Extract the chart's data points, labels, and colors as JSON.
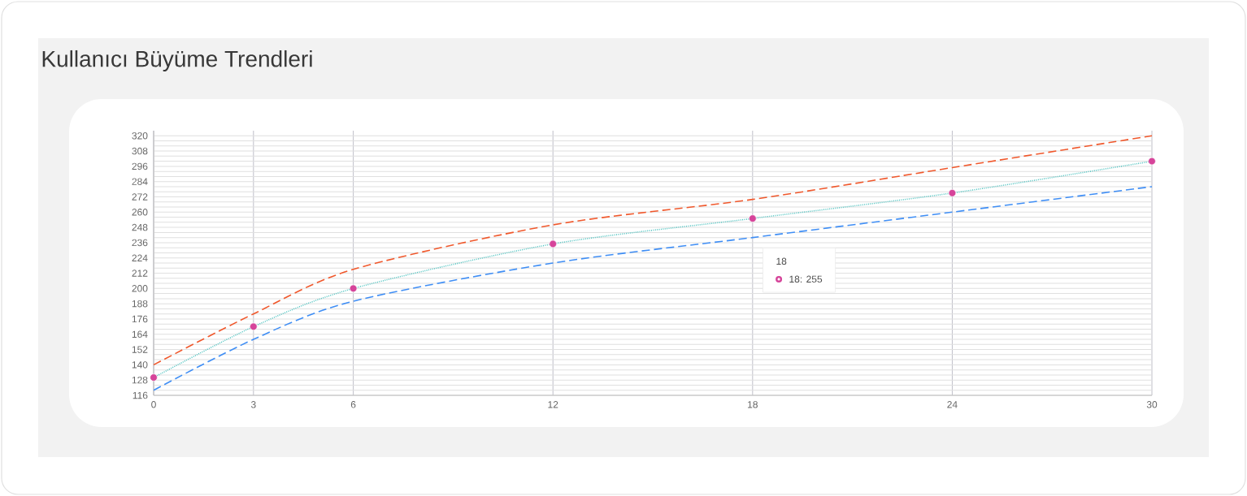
{
  "chart_data": {
    "type": "line",
    "title": "Kullanıcı Büyüme Trendleri",
    "x": [
      0,
      3,
      6,
      12,
      18,
      24,
      30
    ],
    "series": [
      {
        "color": "#f0582c",
        "line_style": "dashed",
        "marker": "none",
        "values": [
          140,
          180,
          215,
          250,
          270,
          295,
          320
        ]
      },
      {
        "color": "#4fc3c0",
        "line_style": "dotted",
        "marker": "none",
        "values": [
          130,
          170,
          200,
          235,
          255,
          275,
          300
        ]
      },
      {
        "color": "#3f8ef5",
        "line_style": "dashed",
        "marker": "none",
        "values": [
          120,
          160,
          190,
          220,
          240,
          260,
          280
        ]
      },
      {
        "type": "scatter",
        "color": "#d6449a",
        "marker": "circle",
        "values": [
          130,
          170,
          200,
          235,
          255,
          275,
          300
        ]
      }
    ],
    "xlim": [
      0,
      30
    ],
    "xticks": [
      0,
      3,
      6,
      12,
      18,
      24,
      30
    ],
    "ylim": [
      116,
      324
    ],
    "yticks": [
      116,
      128,
      140,
      152,
      164,
      176,
      188,
      200,
      212,
      224,
      236,
      248,
      260,
      272,
      284,
      296,
      308,
      320
    ],
    "grid": true,
    "annotations": [
      "18: 255",
      "18"
    ]
  }
}
